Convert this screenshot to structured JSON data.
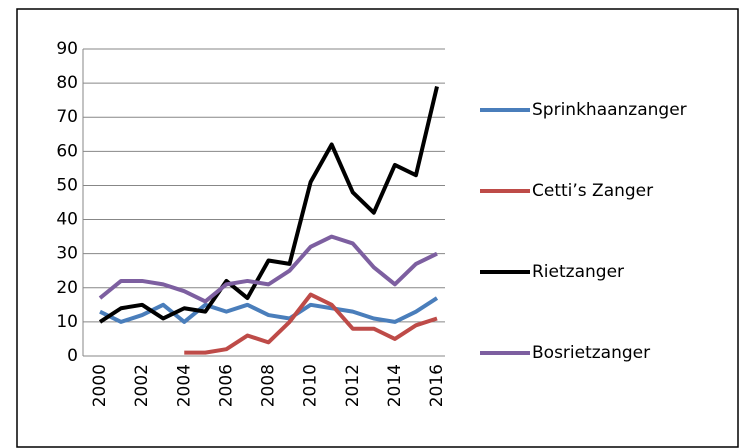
{
  "chart_data": {
    "type": "line",
    "categories": [
      "2000",
      null,
      "2002",
      null,
      "2004",
      null,
      "2006",
      null,
      "2008",
      null,
      "2010",
      null,
      "2012",
      null,
      "2014",
      null,
      "2016"
    ],
    "series": [
      {
        "name": "Sprinkhaanzanger",
        "color": "#4a7ebb",
        "values": [
          13,
          10,
          12,
          15,
          10,
          15,
          13,
          15,
          12,
          11,
          15,
          14,
          13,
          11,
          10,
          13,
          17
        ]
      },
      {
        "name": "Cetti’s Zanger",
        "color": "#be4b48",
        "values": [
          null,
          null,
          null,
          null,
          1,
          1,
          2,
          6,
          4,
          10,
          18,
          15,
          8,
          8,
          5,
          9,
          11
        ]
      },
      {
        "name": "Rietzanger",
        "color": "#000000",
        "values": [
          10,
          14,
          15,
          11,
          14,
          13,
          22,
          17,
          28,
          27,
          51,
          62,
          48,
          42,
          56,
          53,
          79
        ]
      },
      {
        "name": "Bosrietzanger",
        "color": "#7d5fa0",
        "values": [
          17,
          22,
          22,
          21,
          19,
          16,
          21,
          22,
          21,
          25,
          32,
          35,
          33,
          26,
          21,
          27,
          30
        ]
      }
    ],
    "ylim": [
      0,
      90
    ],
    "yticks": [
      0,
      10,
      20,
      30,
      40,
      50,
      60,
      70,
      80,
      90
    ],
    "grid": true,
    "legend": "right"
  }
}
